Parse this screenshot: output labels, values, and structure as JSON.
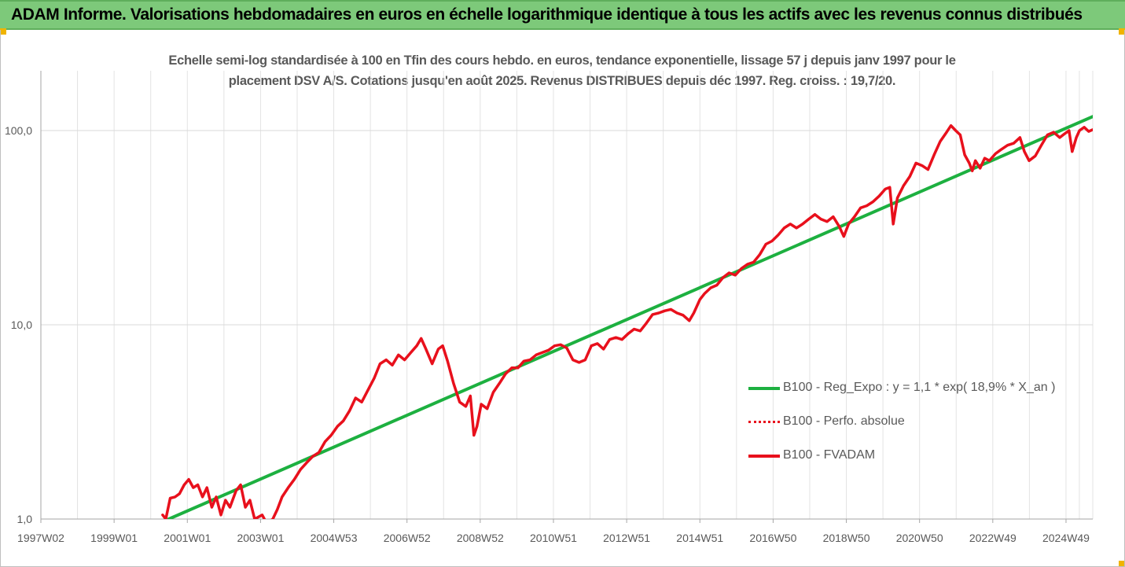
{
  "banner": {
    "title": "ADAM Informe. Valorisations hebdomadaires en euros en échelle logarithmique identique à tous les actifs avec les revenus connus distribués"
  },
  "chart_data": {
    "type": "line",
    "title": "Echelle semi-log standardisée à 100 en Tfin des cours hebdo. en euros, tendance exponentielle, lissage 57 j depuis janv 1997 pour le placement DSV A/S. Cotations jusqu'en août 2025. Revenus DISTRIBUES depuis déc 1997. Reg. croiss. : 19,7/20.",
    "title_lines": [
      "Echelle semi-log standardisée à 100 en Tfin des cours hebdo. en euros, tendance exponentielle, lissage 57 j depuis janv 1997 pour le",
      "placement DSV A/S. Cotations jusqu'en août 2025. Revenus DISTRIBUES depuis déc 1997. Reg. croiss. : 19,7/20."
    ],
    "x_axis": {
      "type": "date",
      "range": [
        "1997-01-06",
        "2025-08-25"
      ],
      "tick_labels": [
        "1997W02",
        "1999W01",
        "2001W01",
        "2003W01",
        "2004W53",
        "2006W52",
        "2008W52",
        "2010W51",
        "2012W51",
        "2014W51",
        "2016W50",
        "2018W50",
        "2020W50",
        "2022W49",
        "2024W49"
      ],
      "tick_dates": [
        "1997-01-06",
        "1999-01-04",
        "2001-01-01",
        "2002-12-30",
        "2004-12-27",
        "2006-12-25",
        "2008-12-22",
        "2010-12-20",
        "2012-12-17",
        "2014-12-15",
        "2016-12-12",
        "2018-12-10",
        "2020-12-07",
        "2022-12-05",
        "2024-12-02"
      ]
    },
    "y_axis": {
      "scale": "log",
      "range": [
        1,
        200
      ],
      "tick_values": [
        1,
        10,
        100
      ],
      "tick_labels": [
        "1,0",
        "10,0",
        "100,0"
      ]
    },
    "grid": {
      "vertical": true,
      "horizontal": true
    },
    "legend_position": "right",
    "series": [
      {
        "name": "B100 - Reg_Expo : y = 1,1 * exp( 18,9% *  X_an )",
        "color": "#1db040",
        "style": "solid",
        "points": [
          [
            "2000-07-01",
            1.0
          ],
          [
            "2025-08-25",
            118
          ]
        ]
      },
      {
        "name": "B100 - Perfo. absolue",
        "color": "#e8101c",
        "style": "dotted",
        "points": []
      },
      {
        "name": "B100 - FVADAM",
        "color": "#e8101c",
        "style": "solid",
        "points": [
          [
            "2000-05-01",
            1.05
          ],
          [
            "2000-06-01",
            1.0
          ],
          [
            "2000-07-15",
            1.28
          ],
          [
            "2000-09-01",
            1.3
          ],
          [
            "2000-10-15",
            1.35
          ],
          [
            "2000-12-01",
            1.5
          ],
          [
            "2001-01-15",
            1.6
          ],
          [
            "2001-03-01",
            1.45
          ],
          [
            "2001-04-15",
            1.5
          ],
          [
            "2001-06-01",
            1.3
          ],
          [
            "2001-07-15",
            1.45
          ],
          [
            "2001-09-01",
            1.15
          ],
          [
            "2001-10-15",
            1.3
          ],
          [
            "2001-12-01",
            1.05
          ],
          [
            "2002-01-15",
            1.25
          ],
          [
            "2002-03-01",
            1.15
          ],
          [
            "2002-05-01",
            1.4
          ],
          [
            "2002-06-15",
            1.5
          ],
          [
            "2002-08-01",
            1.15
          ],
          [
            "2002-09-15",
            1.25
          ],
          [
            "2002-11-01",
            1.0
          ],
          [
            "2003-01-15",
            1.05
          ],
          [
            "2003-03-01",
            0.95
          ],
          [
            "2003-05-01",
            1.0
          ],
          [
            "2003-06-15",
            1.12
          ],
          [
            "2003-08-01",
            1.3
          ],
          [
            "2003-10-01",
            1.45
          ],
          [
            "2003-12-01",
            1.6
          ],
          [
            "2004-02-01",
            1.8
          ],
          [
            "2004-04-01",
            1.95
          ],
          [
            "2004-06-01",
            2.1
          ],
          [
            "2004-08-01",
            2.2
          ],
          [
            "2004-10-01",
            2.5
          ],
          [
            "2004-12-01",
            2.7
          ],
          [
            "2005-02-01",
            3.0
          ],
          [
            "2005-04-01",
            3.2
          ],
          [
            "2005-06-01",
            3.6
          ],
          [
            "2005-08-01",
            4.2
          ],
          [
            "2005-10-01",
            4.0
          ],
          [
            "2005-12-01",
            4.6
          ],
          [
            "2006-02-01",
            5.3
          ],
          [
            "2006-04-01",
            6.3
          ],
          [
            "2006-06-01",
            6.6
          ],
          [
            "2006-08-01",
            6.2
          ],
          [
            "2006-10-01",
            7.0
          ],
          [
            "2006-12-01",
            6.6
          ],
          [
            "2007-02-01",
            7.2
          ],
          [
            "2007-04-01",
            7.8
          ],
          [
            "2007-05-15",
            8.5
          ],
          [
            "2007-07-01",
            7.5
          ],
          [
            "2007-09-01",
            6.3
          ],
          [
            "2007-11-01",
            7.5
          ],
          [
            "2007-12-15",
            7.8
          ],
          [
            "2008-02-01",
            6.5
          ],
          [
            "2008-04-01",
            5.0
          ],
          [
            "2008-06-01",
            4.0
          ],
          [
            "2008-08-01",
            3.8
          ],
          [
            "2008-09-15",
            4.3
          ],
          [
            "2008-10-20",
            2.7
          ],
          [
            "2008-11-20",
            3.0
          ],
          [
            "2009-01-01",
            3.9
          ],
          [
            "2009-03-01",
            3.7
          ],
          [
            "2009-05-01",
            4.5
          ],
          [
            "2009-07-01",
            5.0
          ],
          [
            "2009-09-01",
            5.6
          ],
          [
            "2009-11-01",
            6.0
          ],
          [
            "2010-01-01",
            6.0
          ],
          [
            "2010-03-01",
            6.5
          ],
          [
            "2010-05-01",
            6.6
          ],
          [
            "2010-07-01",
            7.0
          ],
          [
            "2010-09-01",
            7.2
          ],
          [
            "2010-11-01",
            7.4
          ],
          [
            "2011-01-01",
            7.8
          ],
          [
            "2011-03-01",
            7.9
          ],
          [
            "2011-05-01",
            7.6
          ],
          [
            "2011-07-01",
            6.6
          ],
          [
            "2011-09-01",
            6.4
          ],
          [
            "2011-11-01",
            6.6
          ],
          [
            "2012-01-01",
            7.8
          ],
          [
            "2012-03-01",
            8.0
          ],
          [
            "2012-05-01",
            7.5
          ],
          [
            "2012-07-01",
            8.4
          ],
          [
            "2012-09-01",
            8.6
          ],
          [
            "2012-11-01",
            8.4
          ],
          [
            "2013-01-01",
            9.0
          ],
          [
            "2013-03-01",
            9.5
          ],
          [
            "2013-05-01",
            9.3
          ],
          [
            "2013-07-01",
            10.2
          ],
          [
            "2013-09-01",
            11.3
          ],
          [
            "2013-11-01",
            11.5
          ],
          [
            "2014-01-01",
            11.8
          ],
          [
            "2014-03-01",
            12.0
          ],
          [
            "2014-05-01",
            11.5
          ],
          [
            "2014-07-01",
            11.2
          ],
          [
            "2014-09-01",
            10.5
          ],
          [
            "2014-10-15",
            11.5
          ],
          [
            "2014-12-15",
            13.5
          ],
          [
            "2015-02-01",
            14.5
          ],
          [
            "2015-04-01",
            15.5
          ],
          [
            "2015-06-01",
            16.0
          ],
          [
            "2015-08-01",
            17.5
          ],
          [
            "2015-10-01",
            18.5
          ],
          [
            "2015-12-01",
            18.0
          ],
          [
            "2016-02-01",
            19.5
          ],
          [
            "2016-04-01",
            20.5
          ],
          [
            "2016-06-01",
            21.0
          ],
          [
            "2016-08-01",
            23.0
          ],
          [
            "2016-10-01",
            26.0
          ],
          [
            "2016-12-01",
            27.0
          ],
          [
            "2017-02-01",
            29.0
          ],
          [
            "2017-04-01",
            31.5
          ],
          [
            "2017-06-01",
            33.0
          ],
          [
            "2017-08-01",
            31.5
          ],
          [
            "2017-10-01",
            33.0
          ],
          [
            "2017-12-01",
            35.0
          ],
          [
            "2018-02-01",
            37.0
          ],
          [
            "2018-04-01",
            35.0
          ],
          [
            "2018-06-01",
            34.0
          ],
          [
            "2018-08-01",
            36.0
          ],
          [
            "2018-10-01",
            32.0
          ],
          [
            "2018-11-15",
            28.5
          ],
          [
            "2019-01-01",
            33.0
          ],
          [
            "2019-03-01",
            36.0
          ],
          [
            "2019-05-01",
            40.0
          ],
          [
            "2019-07-01",
            41.0
          ],
          [
            "2019-09-01",
            43.0
          ],
          [
            "2019-11-01",
            46.0
          ],
          [
            "2020-01-01",
            50.0
          ],
          [
            "2020-02-15",
            51.0
          ],
          [
            "2020-03-20",
            33.0
          ],
          [
            "2020-05-01",
            45.0
          ],
          [
            "2020-07-01",
            52.0
          ],
          [
            "2020-09-01",
            58.0
          ],
          [
            "2020-11-01",
            68.0
          ],
          [
            "2021-01-01",
            66.0
          ],
          [
            "2021-03-01",
            63.0
          ],
          [
            "2021-05-01",
            75.0
          ],
          [
            "2021-07-01",
            88.0
          ],
          [
            "2021-09-01",
            98.0
          ],
          [
            "2021-10-15",
            106.0
          ],
          [
            "2021-12-01",
            100.0
          ],
          [
            "2022-01-15",
            95.0
          ],
          [
            "2022-03-01",
            75.0
          ],
          [
            "2022-04-15",
            68.0
          ],
          [
            "2022-05-15",
            62.0
          ],
          [
            "2022-06-15",
            70.0
          ],
          [
            "2022-08-01",
            64.0
          ],
          [
            "2022-09-15",
            72.0
          ],
          [
            "2022-11-01",
            70.0
          ],
          [
            "2023-01-01",
            76.0
          ],
          [
            "2023-03-01",
            80.0
          ],
          [
            "2023-05-01",
            84.0
          ],
          [
            "2023-07-01",
            86.0
          ],
          [
            "2023-09-01",
            92.0
          ],
          [
            "2023-10-15",
            78.0
          ],
          [
            "2023-12-01",
            70.0
          ],
          [
            "2024-02-01",
            74.0
          ],
          [
            "2024-04-01",
            84.0
          ],
          [
            "2024-06-01",
            95.0
          ],
          [
            "2024-08-01",
            98.0
          ],
          [
            "2024-10-01",
            92.0
          ],
          [
            "2024-11-15",
            96.0
          ],
          [
            "2025-01-01",
            100.0
          ],
          [
            "2025-02-01",
            78.0
          ],
          [
            "2025-03-15",
            92.0
          ],
          [
            "2025-04-15",
            100.0
          ],
          [
            "2025-06-01",
            104.0
          ],
          [
            "2025-07-15",
            99.0
          ],
          [
            "2025-08-25",
            101.0
          ]
        ]
      }
    ]
  }
}
